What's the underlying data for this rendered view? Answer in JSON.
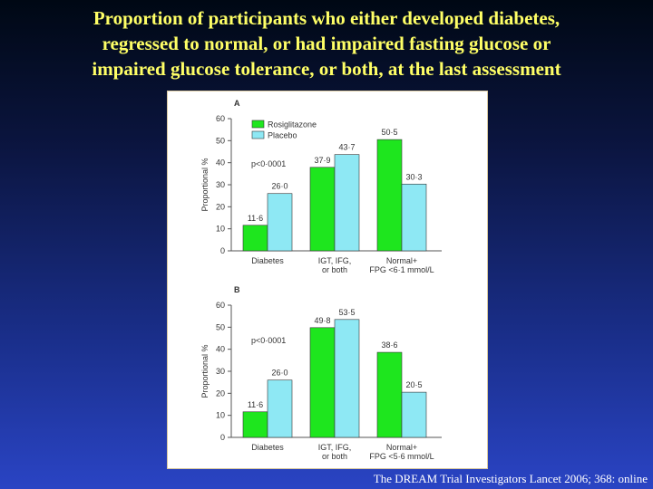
{
  "slide": {
    "title_lines": [
      "Proportion of participants who either developed diabetes,",
      "regressed to normal, or had impaired fasting glucose or",
      "impaired glucose tolerance, or both, at the last assessment"
    ],
    "citation": "The DREAM Trial Investigators  Lancet 2006; 368: online"
  },
  "colors": {
    "rosiglitazone": "#1ee61e",
    "placebo": "#8ee8f4"
  },
  "chart_data": [
    {
      "type": "bar",
      "panel": "A",
      "ylabel": "Proportional %",
      "ylim": [
        0,
        60
      ],
      "yticks": [
        0,
        10,
        20,
        30,
        40,
        50,
        60
      ],
      "categories": [
        [
          "Diabetes"
        ],
        [
          "IGT, IFG,",
          "or both"
        ],
        [
          "Normal+",
          "FPG <6·1 mmol/L"
        ]
      ],
      "series": [
        {
          "name": "Rosiglitazone",
          "values": [
            11.6,
            37.9,
            50.5
          ],
          "labels": [
            "11·6",
            "37·9",
            "50·5"
          ]
        },
        {
          "name": "Placebo",
          "values": [
            26.0,
            43.7,
            30.3
          ],
          "labels": [
            "26·0",
            "43·7",
            "30·3"
          ]
        }
      ],
      "annotation": "p<0·0001",
      "legend": "top-left",
      "grid": false
    },
    {
      "type": "bar",
      "panel": "B",
      "ylabel": "Proportional %",
      "ylim": [
        0,
        60
      ],
      "yticks": [
        0,
        10,
        20,
        30,
        40,
        50,
        60
      ],
      "categories": [
        [
          "Diabetes"
        ],
        [
          "IGT, IFG,",
          "or both"
        ],
        [
          "Normal+",
          "FPG <5·6 mmol/L"
        ]
      ],
      "series": [
        {
          "name": "Rosiglitazone",
          "values": [
            11.6,
            49.8,
            38.6
          ],
          "labels": [
            "11·6",
            "49·8",
            "38·6"
          ]
        },
        {
          "name": "Placebo",
          "values": [
            26.0,
            53.5,
            20.5
          ],
          "labels": [
            "26·0",
            "53·5",
            "20·5"
          ]
        }
      ],
      "annotation": "p<0·0001",
      "legend": "none",
      "grid": false
    }
  ]
}
